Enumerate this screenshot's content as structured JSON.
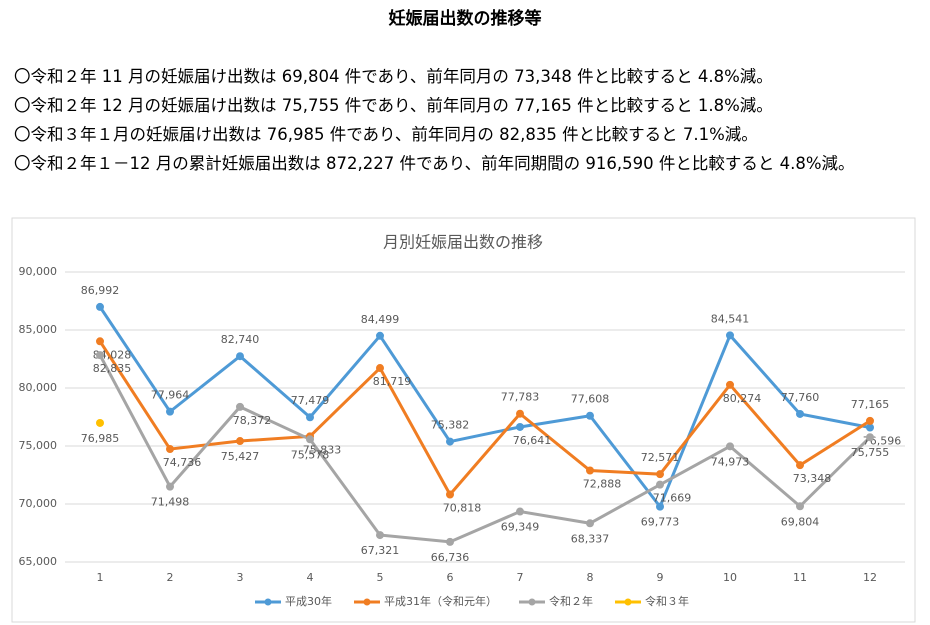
{
  "header": {
    "title": "妊娠届出数の推移等"
  },
  "bullets": [
    "〇令和２年 11 月の妊娠届け出数は 69,804 件であり、前年同月の 73,348 件と比較すると 4.8%減。",
    "〇令和２年 12 月の妊娠届け出数は 75,755 件であり、前年同月の 77,165 件と比較すると 1.8%減。",
    "〇令和３年１月の妊娠届け出数は 76,985 件であり、前年同月の 82,835 件と比較すると 7.1%減。",
    "〇令和２年１－12 月の累計妊娠届出数は 872,227 件であり、前年同期間の 916,590 件と比較すると 4.8%減。"
  ],
  "chart_data": {
    "type": "line",
    "title": "月別妊娠届出数の推移",
    "categories": [
      "1",
      "2",
      "3",
      "4",
      "5",
      "6",
      "7",
      "8",
      "9",
      "10",
      "11",
      "12"
    ],
    "ylim": [
      65000,
      90000
    ],
    "yticks": [
      {
        "value": 65000,
        "label": "65,000"
      },
      {
        "value": 70000,
        "label": "70,000"
      },
      {
        "value": 75000,
        "label": "75,000"
      },
      {
        "value": 80000,
        "label": "80,000"
      },
      {
        "value": 85000,
        "label": "85,000"
      },
      {
        "value": 90000,
        "label": "90,000"
      }
    ],
    "grid": true,
    "legend": "bottom",
    "series": [
      {
        "name": "平成30年",
        "color": "#4e9ad6",
        "values": [
          86992,
          77964,
          82740,
          77479,
          84499,
          75382,
          76641,
          77608,
          69773,
          84541,
          77760,
          76596
        ],
        "value_labels": [
          "86,992",
          "77,964",
          "82,740",
          "77,479",
          "84,499",
          "75,382",
          "76,641",
          "77,608",
          "69,773",
          "84,541",
          "77,760",
          "76,596"
        ]
      },
      {
        "name": "平成31年（令和元年）",
        "color": "#f07d22",
        "values": [
          84028,
          74736,
          75427,
          75833,
          81719,
          70818,
          77783,
          72888,
          72571,
          80274,
          73348,
          77165
        ],
        "value_labels": [
          "84,028",
          "74,736",
          "75,427",
          "75,833",
          "81,719",
          "70,818",
          "77,783",
          "72,888",
          "72,571",
          "80,274",
          "73,348",
          "77,165"
        ]
      },
      {
        "name": "令和２年",
        "color": "#a5a5a5",
        "values": [
          82835,
          71498,
          78372,
          75578,
          67321,
          66736,
          69349,
          68337,
          71669,
          74973,
          69804,
          75755
        ],
        "value_labels": [
          "82,835",
          "71,498",
          "78,372",
          "75,578",
          "67,321",
          "66,736",
          "69,349",
          "68,337",
          "71,669",
          "74,973",
          "69,804",
          "75,755"
        ]
      },
      {
        "name": "令和３年",
        "color": "#ffc000",
        "values": [
          76985,
          null,
          null,
          null,
          null,
          null,
          null,
          null,
          null,
          null,
          null,
          null
        ],
        "value_labels": [
          "76,985",
          null,
          null,
          null,
          null,
          null,
          null,
          null,
          null,
          null,
          null,
          null
        ]
      }
    ]
  }
}
